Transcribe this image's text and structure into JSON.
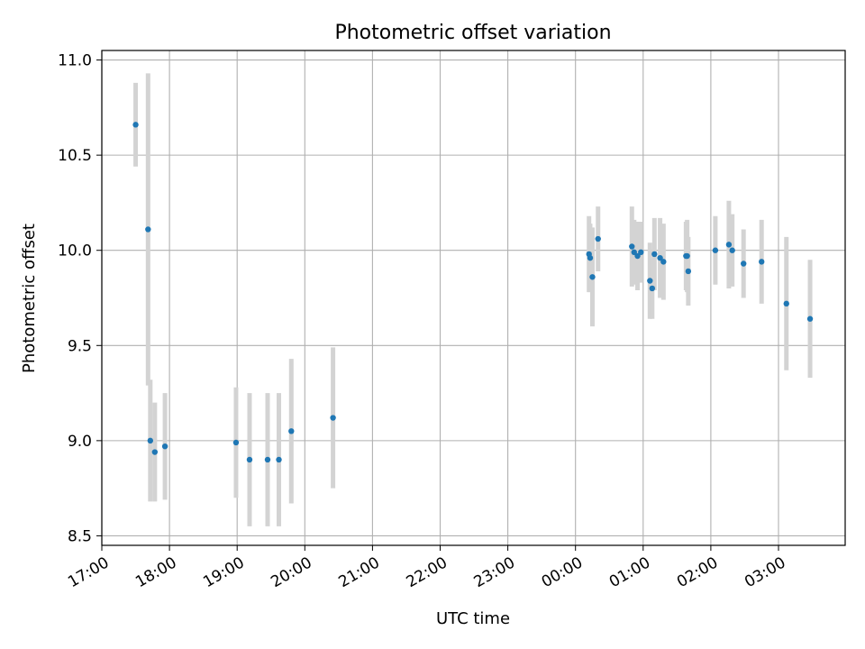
{
  "chart_data": {
    "type": "scatter",
    "title": "Photometric offset variation",
    "xlabel": "UTC time",
    "ylabel": "Photometric offset",
    "x_axis_type": "time",
    "xlim": [
      "17:00",
      "04:00 (next day)"
    ],
    "ylim": [
      8.45,
      11.05
    ],
    "x_ticks": [
      "17:00",
      "18:00",
      "19:00",
      "20:00",
      "21:00",
      "22:00",
      "23:00",
      "00:00",
      "01:00",
      "02:00",
      "03:00"
    ],
    "y_ticks": [
      8.5,
      9.0,
      9.5,
      10.0,
      10.5,
      11.0
    ],
    "y_tick_labels": [
      "8.5",
      "9.0",
      "9.5",
      "10.0",
      "10.5",
      "11.0"
    ],
    "grid": true,
    "colors": {
      "points": "#1f77b4",
      "errorbars": "#d3d3d3",
      "grid": "#b0b0b0"
    },
    "series": [
      {
        "points": [
          {
            "t": "17:30",
            "y": 10.66,
            "err": 0.22
          },
          {
            "t": "17:41",
            "y": 10.11,
            "err": 0.82
          },
          {
            "t": "17:43",
            "y": 9.0,
            "err": 0.32
          },
          {
            "t": "17:47",
            "y": 8.94,
            "err": 0.26
          },
          {
            "t": "17:56",
            "y": 8.97,
            "err": 0.28
          },
          {
            "t": "18:59",
            "y": 8.99,
            "err": 0.29
          },
          {
            "t": "19:11",
            "y": 8.9,
            "err": 0.35
          },
          {
            "t": "19:27",
            "y": 8.9,
            "err": 0.35
          },
          {
            "t": "19:37",
            "y": 8.9,
            "err": 0.35
          },
          {
            "t": "19:48",
            "y": 9.05,
            "err": 0.38
          },
          {
            "t": "20:25",
            "y": 9.12,
            "err": 0.37
          },
          {
            "t": "00:12",
            "y": 9.98,
            "err": 0.2
          },
          {
            "t": "00:13",
            "y": 9.96,
            "err": 0.18
          },
          {
            "t": "00:15",
            "y": 9.86,
            "err": 0.26
          },
          {
            "t": "00:20",
            "y": 10.06,
            "err": 0.17
          },
          {
            "t": "00:50",
            "y": 10.02,
            "err": 0.21
          },
          {
            "t": "00:52",
            "y": 9.99,
            "err": 0.17
          },
          {
            "t": "00:55",
            "y": 9.97,
            "err": 0.18
          },
          {
            "t": "00:58",
            "y": 9.99,
            "err": 0.16
          },
          {
            "t": "01:06",
            "y": 9.84,
            "err": 0.2
          },
          {
            "t": "01:08",
            "y": 9.8,
            "err": 0.16
          },
          {
            "t": "01:10",
            "y": 9.98,
            "err": 0.19
          },
          {
            "t": "01:15",
            "y": 9.96,
            "err": 0.21
          },
          {
            "t": "01:18",
            "y": 9.94,
            "err": 0.2
          },
          {
            "t": "01:38",
            "y": 9.97,
            "err": 0.18
          },
          {
            "t": "01:39",
            "y": 9.97,
            "err": 0.19
          },
          {
            "t": "01:40",
            "y": 9.89,
            "err": 0.18
          },
          {
            "t": "02:04",
            "y": 10.0,
            "err": 0.18
          },
          {
            "t": "02:16",
            "y": 10.03,
            "err": 0.23
          },
          {
            "t": "02:19",
            "y": 10.0,
            "err": 0.19
          },
          {
            "t": "02:29",
            "y": 9.93,
            "err": 0.18
          },
          {
            "t": "02:45",
            "y": 9.94,
            "err": 0.22
          },
          {
            "t": "03:07",
            "y": 9.72,
            "err": 0.35
          },
          {
            "t": "03:28",
            "y": 9.64,
            "err": 0.31
          }
        ]
      }
    ]
  }
}
